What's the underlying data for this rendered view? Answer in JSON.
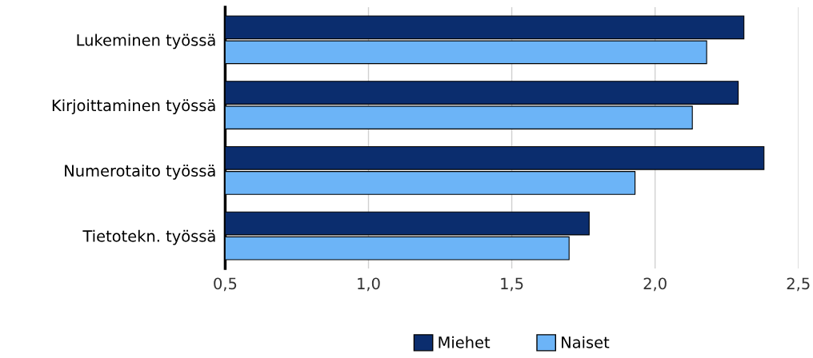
{
  "chart_data": {
    "type": "bar",
    "orientation": "horizontal",
    "categories": [
      "Lukeminen työssä",
      "Kirjoittaminen työssä",
      "Numerotaito työssä",
      "Tietotekn. työssä"
    ],
    "series": [
      {
        "name": "Miehet",
        "color": "#0b2d6e",
        "values": [
          2.31,
          2.29,
          2.38,
          1.77
        ]
      },
      {
        "name": "Naiset",
        "color": "#6cb4f7",
        "values": [
          2.18,
          2.13,
          1.93,
          1.7
        ]
      }
    ],
    "xlim": [
      0.5,
      2.5
    ],
    "xticks": [
      {
        "value": 0.5,
        "label": "0,5"
      },
      {
        "value": 1.0,
        "label": "1,0"
      },
      {
        "value": 1.5,
        "label": "1,5"
      },
      {
        "value": 2.0,
        "label": "2,0"
      },
      {
        "value": 2.5,
        "label": "2,5"
      }
    ],
    "grid": "x",
    "legend": "bottom"
  }
}
